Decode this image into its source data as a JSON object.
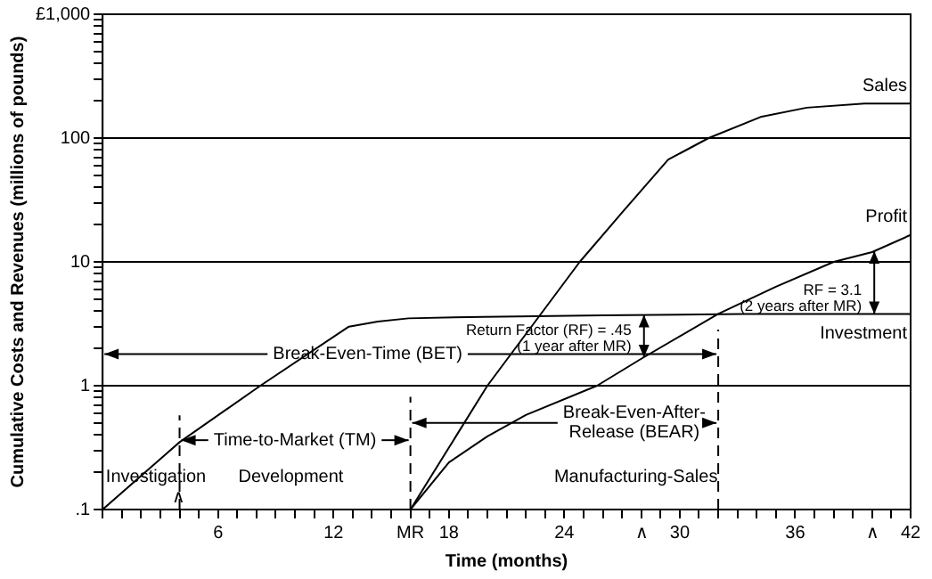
{
  "chart_data": {
    "type": "line",
    "xlabel": "Time (months)",
    "ylabel": "Cumulative Costs and Revenues (millions of pounds)",
    "xlim": [
      0,
      42
    ],
    "xticks": [
      {
        "value": 0,
        "label": null
      },
      {
        "value": 1,
        "label": null
      },
      {
        "value": 2,
        "label": null
      },
      {
        "value": 3,
        "label": null
      },
      {
        "value": 4,
        "label": null
      },
      {
        "value": 5,
        "label": null
      },
      6,
      {
        "value": 7,
        "label": null
      },
      {
        "value": 8,
        "label": null
      },
      {
        "value": 9,
        "label": null
      },
      {
        "value": 10,
        "label": null
      },
      {
        "value": 11,
        "label": null
      },
      12,
      {
        "value": 13,
        "label": null
      },
      {
        "value": 14,
        "label": null
      },
      {
        "value": 15,
        "label": null
      },
      {
        "value": 16,
        "label": "MR"
      },
      {
        "value": 17,
        "label": null
      },
      18,
      {
        "value": 19,
        "label": null
      },
      {
        "value": 20,
        "label": null
      },
      {
        "value": 21,
        "label": null
      },
      {
        "value": 22,
        "label": null
      },
      {
        "value": 23,
        "label": null
      },
      24,
      {
        "value": 25,
        "label": null
      },
      {
        "value": 26,
        "label": null
      },
      {
        "value": 27,
        "label": null
      },
      {
        "value": 28,
        "label": "∧"
      },
      {
        "value": 29,
        "label": null
      },
      30,
      {
        "value": 31,
        "label": null
      },
      {
        "value": 32,
        "label": null
      },
      {
        "value": 33,
        "label": null
      },
      {
        "value": 34,
        "label": null
      },
      {
        "value": 35,
        "label": null
      },
      36,
      {
        "value": 37,
        "label": null
      },
      {
        "value": 38,
        "label": null
      },
      {
        "value": 39,
        "label": null
      },
      {
        "value": 40,
        "label": "∧"
      },
      {
        "value": 41,
        "label": null
      },
      42
    ],
    "log": "y",
    "ylim": [
      0.1,
      1000
    ],
    "yticks": [
      {
        "value": 0.1,
        "label": ".1"
      },
      {
        "value": 0.2,
        "label": null
      },
      {
        "value": 0.3,
        "label": null
      },
      {
        "value": 0.4,
        "label": null
      },
      {
        "value": 0.5,
        "label": null
      },
      {
        "value": 0.6,
        "label": null
      },
      {
        "value": 0.7,
        "label": null
      },
      {
        "value": 0.8,
        "label": null
      },
      {
        "value": 0.9,
        "label": null
      },
      1,
      {
        "value": 2,
        "label": null
      },
      {
        "value": 3,
        "label": null
      },
      {
        "value": 4,
        "label": null
      },
      {
        "value": 5,
        "label": null
      },
      {
        "value": 6,
        "label": null
      },
      {
        "value": 7,
        "label": null
      },
      {
        "value": 8,
        "label": null
      },
      {
        "value": 9,
        "label": null
      },
      10,
      {
        "value": 20,
        "label": null
      },
      {
        "value": 30,
        "label": null
      },
      {
        "value": 40,
        "label": null
      },
      {
        "value": 50,
        "label": null
      },
      {
        "value": 60,
        "label": null
      },
      {
        "value": 70,
        "label": null
      },
      {
        "value": 80,
        "label": null
      },
      {
        "value": 90,
        "label": null
      },
      100,
      {
        "value": 200,
        "label": null
      },
      {
        "value": 300,
        "label": null
      },
      {
        "value": 400,
        "label": null
      },
      {
        "value": 500,
        "label": null
      },
      {
        "value": 600,
        "label": null
      },
      {
        "value": 700,
        "label": null
      },
      {
        "value": 800,
        "label": null
      },
      {
        "value": 900,
        "label": null
      },
      {
        "value": 1000,
        "label": "£1,000"
      }
    ],
    "grid": "y",
    "marker": "none",
    "line_style": "solid",
    "series": [
      {
        "name": "Investment",
        "color": "#000000",
        "x": [
          0,
          4,
          8.2,
          12.8,
          14.3,
          15.9,
          19.8,
          26,
          33.3,
          42
        ],
        "values": [
          0.1,
          0.35,
          1,
          3,
          3.3,
          3.5,
          3.6,
          3.7,
          3.8,
          3.8
        ]
      },
      {
        "name": "Sales",
        "color": "#000000",
        "x": [
          16,
          20,
          24.8,
          27,
          29.4,
          31.5,
          34.2,
          36.6,
          39.6,
          42
        ],
        "values": [
          0.1,
          1,
          10,
          25,
          67,
          100,
          148,
          176,
          190,
          190
        ]
      },
      {
        "name": "Profit",
        "color": "#000000",
        "x": [
          16,
          18,
          20,
          22,
          25.7,
          28,
          32,
          35,
          38,
          40,
          42
        ],
        "values": [
          0.1,
          0.24,
          0.39,
          0.58,
          1,
          1.65,
          3.8,
          6.3,
          10,
          12,
          16.5
        ]
      }
    ],
    "ref_lines": [
      {
        "axis": "x",
        "value": 4,
        "line_style": "dashed"
      },
      {
        "axis": "x",
        "value": 16,
        "line_style": "dashed"
      },
      {
        "axis": "x",
        "value": 32,
        "line_style": "dashed"
      }
    ],
    "annotations": [
      "Investigation",
      "Development",
      "Manufacturing-Sales",
      "Time-to-Market (TM)",
      {
        "text": "Break-Even-Time (BET)",
        "x": 32,
        "y": 1.8
      },
      {
        "text": "Break-Even-After-\nRelease (BEAR)",
        "x": 32,
        "y": 0.5
      },
      "Return Factor (RF) = .45\n(1 year after MR)",
      "RF = 3.1\n(2 years after MR)",
      "∧"
    ]
  }
}
